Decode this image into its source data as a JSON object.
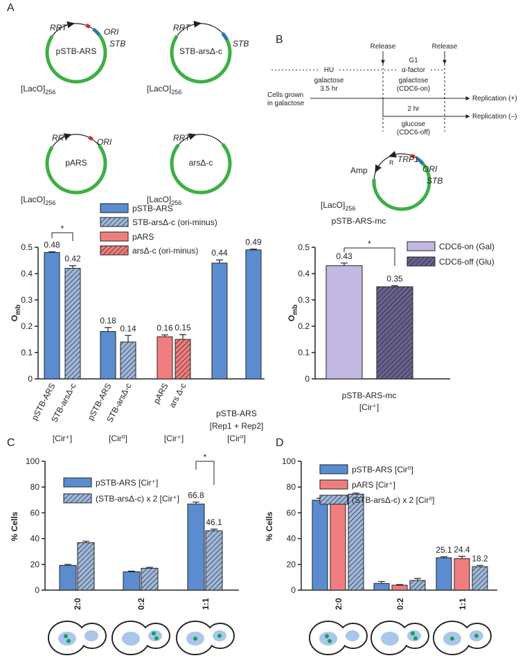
{
  "panel_labels": [
    "A",
    "B",
    "C",
    "D"
  ],
  "plasmids": [
    {
      "labels": [
        "RRT",
        "ORI",
        "STB"
      ],
      "name": "pSTB-ARS",
      "lacO": "[LacO]",
      "lacO_sub": "256"
    },
    {
      "labels": [
        "RRT",
        "STB"
      ],
      "name": "STB-arsΔ-c",
      "lacO": "[LacO]",
      "lacO_sub": "256"
    },
    {
      "labels": [
        "RRT",
        "ORI"
      ],
      "name": "pARS",
      "lacO": "[LacO]",
      "lacO_sub": "256"
    },
    {
      "labels": [
        "RRT"
      ],
      "name": "arsΔ-c",
      "lacO": "[LacO]",
      "lacO_sub": "256"
    }
  ],
  "timeline": {
    "release": [
      "Release",
      "Release"
    ],
    "phases": [
      "HU",
      "G1",
      "α-factor"
    ],
    "conditions": [
      "galactose",
      "3.5 hr",
      "galactose",
      "(CDC6-on)",
      "2 hr",
      "glucose",
      "(CDC6-off)"
    ],
    "start": [
      "Cells grown",
      "in galactose"
    ],
    "outcomes": [
      "Replication (+)",
      "Replication (–)"
    ]
  },
  "mc_plasmid": {
    "labels": [
      "Amp",
      "R",
      "TRP1",
      "ORI",
      "STB"
    ],
    "name": "pSTB-ARS-mc",
    "lacO": "[LacO]",
    "lacO_sub": "256"
  },
  "chart_data": [
    {
      "type": "bar",
      "ylabel": "O",
      "ylabel_sub": "mb",
      "ylim": [
        0,
        0.5
      ],
      "yticks": [
        0,
        0.1,
        0.2,
        0.3,
        0.4,
        0.5
      ],
      "categories": [
        "pSTB-ARS",
        "STB-arsΔ-c",
        "pSTB-ARS",
        "STB-arsΔ-c",
        "pARS",
        "ars Δ-c",
        null,
        null
      ],
      "group_labels": [
        [
          "[Cir⁺]"
        ],
        [
          "[Cir⁰]"
        ],
        [
          "[Cir⁺]"
        ],
        [
          "pSTB-ARS",
          "[Rep1 + Rep2]",
          "[Cir⁰]"
        ]
      ],
      "significance": "*",
      "series": [
        {
          "name": "pSTB-ARS",
          "color": "#5b8cd0",
          "hatch": false,
          "values": [
            0.48,
            null,
            0.18,
            null,
            null,
            null,
            0.44,
            0.49
          ],
          "errors": [
            0.003,
            null,
            0.015,
            null,
            null,
            null,
            0.012,
            0.003
          ],
          "value_labels": [
            "0.48",
            null,
            "0.18",
            null,
            null,
            null,
            "0.44",
            "0.49"
          ]
        },
        {
          "name": "STB-arsΔ-c (ori-minus)",
          "color": "#9fb8dc",
          "hatch": true,
          "values": [
            null,
            0.42,
            null,
            0.14,
            null,
            null,
            null,
            null
          ],
          "errors": [
            null,
            0.01,
            null,
            0.025,
            null,
            null,
            null,
            null
          ],
          "value_labels": [
            null,
            "0.42",
            null,
            "0.14",
            null,
            null,
            null,
            null
          ]
        },
        {
          "name": "pARS",
          "color": "#f07e7e",
          "hatch": false,
          "values": [
            null,
            null,
            null,
            null,
            0.16,
            null,
            null,
            null
          ],
          "errors": [
            null,
            null,
            null,
            null,
            0.007,
            null,
            null,
            null
          ],
          "value_labels": [
            null,
            null,
            null,
            null,
            "0.16",
            null,
            null,
            null
          ]
        },
        {
          "name": "arsΔ-c (ori-minus)",
          "color": "#f07e7e",
          "hatch": true,
          "values": [
            null,
            null,
            null,
            null,
            null,
            0.15,
            null,
            null
          ],
          "errors": [
            null,
            null,
            null,
            null,
            null,
            0.018,
            null,
            null
          ],
          "value_labels": [
            null,
            null,
            null,
            null,
            null,
            "0.15",
            null,
            null
          ]
        }
      ]
    },
    {
      "type": "bar",
      "ylabel": "O",
      "ylabel_sub": "mb",
      "ylim": [
        0,
        0.5
      ],
      "yticks": [
        0,
        0.1,
        0.2,
        0.3,
        0.4,
        0.5
      ],
      "categories": [
        "pSTB-ARS-mc"
      ],
      "category_note": "[Cir⁺]",
      "significance": "*",
      "series": [
        {
          "name": "CDC6-on (Gal)",
          "color": "#c3b8e2",
          "hatch": false,
          "values": [
            0.43
          ],
          "errors": [
            0.01
          ],
          "value_labels": [
            "0.43"
          ]
        },
        {
          "name": "CDC6-off (Glu)",
          "color": "#6a6190",
          "hatch": true,
          "values": [
            0.35
          ],
          "errors": [
            0.004
          ],
          "value_labels": [
            "0.35"
          ]
        }
      ]
    },
    {
      "type": "bar",
      "ylabel": "% Cells",
      "ylim": [
        0,
        100
      ],
      "yticks": [
        0,
        20,
        40,
        60,
        80,
        100
      ],
      "categories": [
        "2:0",
        "0:2",
        "1:1"
      ],
      "significance": "*",
      "series": [
        {
          "name": "pSTB-ARS [Cir⁺]",
          "color": "#5b8cd0",
          "hatch": false,
          "values": [
            19.2,
            14.2,
            66.8
          ],
          "errors": [
            0.8,
            0.5,
            1.5
          ],
          "value_labels": [
            null,
            null,
            "66.8"
          ]
        },
        {
          "name": "(STB-arsΔ-c) x 2 [Cir⁺]",
          "color": "#9fb8dc",
          "hatch": true,
          "values": [
            36.8,
            17.0,
            46.1
          ],
          "errors": [
            1.2,
            0.7,
            1.2
          ],
          "value_labels": [
            null,
            null,
            "46.1"
          ]
        }
      ]
    },
    {
      "type": "bar",
      "ylabel": "% Cells",
      "ylim": [
        0,
        100
      ],
      "yticks": [
        0,
        20,
        40,
        60,
        80,
        100
      ],
      "categories": [
        "2:0",
        "0:2",
        "1:1"
      ],
      "series": [
        {
          "name": "pSTB-ARS [Cir⁰]",
          "color": "#5b8cd0",
          "hatch": false,
          "values": [
            69.8,
            5.2,
            25.1
          ],
          "errors": [
            1.5,
            1.5,
            0.8
          ],
          "value_labels": [
            null,
            null,
            "25.1"
          ]
        },
        {
          "name": "pARS [Cir⁺]",
          "color": "#f07e7e",
          "hatch": false,
          "values": [
            72.2,
            3.8,
            24.4
          ],
          "errors": [
            1.5,
            0.5,
            1.8
          ],
          "value_labels": [
            null,
            null,
            "24.4"
          ]
        },
        {
          "name": "(STB-arsΔ-c) x 2 [Cir⁰]",
          "color": "#9fb8dc",
          "hatch": true,
          "values": [
            74.5,
            7.5,
            18.2
          ],
          "errors": [
            0.8,
            1.5,
            1.0
          ],
          "value_labels": [
            null,
            null,
            "18.2"
          ]
        }
      ]
    }
  ]
}
